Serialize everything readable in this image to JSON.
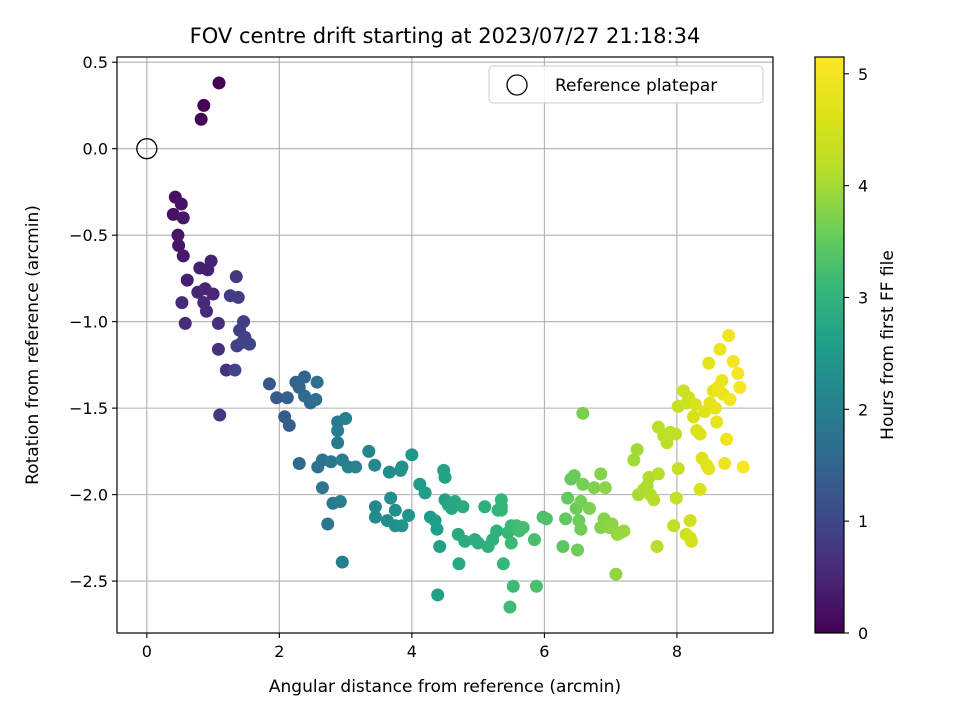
{
  "chart_data": {
    "type": "scatter",
    "title": "FOV centre drift starting at 2023/07/27 21:18:34",
    "xlabel": "Angular distance from reference (arcmin)",
    "ylabel": "Rotation from reference (arcmin)",
    "xlim": [
      -0.45,
      9.45
    ],
    "ylim": [
      -2.8,
      0.53
    ],
    "xticks": [
      0,
      2,
      4,
      6,
      8
    ],
    "xtick_labels": [
      "0",
      "2",
      "4",
      "6",
      "8"
    ],
    "yticks": [
      0.5,
      0.0,
      -0.5,
      -1.0,
      -1.5,
      -2.0,
      -2.5
    ],
    "ytick_labels": [
      "0.5",
      "0.0",
      "−0.5",
      "−1.0",
      "−1.5",
      "−2.0",
      "−2.5"
    ],
    "grid": true,
    "colormap": "viridis",
    "colorbar": {
      "label": "Hours from first FF file",
      "range": [
        0,
        5.15
      ],
      "ticks": [
        0,
        1,
        2,
        3,
        4,
        5
      ],
      "tick_labels": [
        "0",
        "1",
        "2",
        "3",
        "4",
        "5"
      ]
    },
    "legend": {
      "position": "upper-right",
      "entries": [
        "Reference platepar"
      ]
    },
    "reference": {
      "x": 0.0,
      "y": 0.0
    },
    "series": [
      {
        "columns": [
          "x",
          "y",
          "hours"
        ],
        "points": [
          [
            1.09,
            0.38,
            0.02
          ],
          [
            0.86,
            0.25,
            0.03
          ],
          [
            0.82,
            0.17,
            0.04
          ],
          [
            0.43,
            -0.28,
            0.2
          ],
          [
            0.4,
            -0.38,
            0.22
          ],
          [
            0.52,
            -0.32,
            0.24
          ],
          [
            0.47,
            -0.5,
            0.26
          ],
          [
            0.48,
            -0.56,
            0.28
          ],
          [
            0.55,
            -0.4,
            0.3
          ],
          [
            0.55,
            -0.62,
            0.32
          ],
          [
            0.61,
            -0.76,
            0.38
          ],
          [
            0.8,
            -0.69,
            0.4
          ],
          [
            0.92,
            -0.7,
            0.42
          ],
          [
            0.97,
            -0.65,
            0.44
          ],
          [
            0.77,
            -0.83,
            0.46
          ],
          [
            0.88,
            -0.81,
            0.48
          ],
          [
            1.0,
            -0.84,
            0.5
          ],
          [
            0.86,
            -0.89,
            0.52
          ],
          [
            0.9,
            -0.94,
            0.54
          ],
          [
            0.53,
            -0.89,
            0.56
          ],
          [
            0.58,
            -1.01,
            0.58
          ],
          [
            1.08,
            -1.01,
            0.62
          ],
          [
            1.08,
            -1.16,
            0.66
          ],
          [
            1.2,
            -1.28,
            0.7
          ],
          [
            1.1,
            -1.54,
            0.74
          ],
          [
            1.35,
            -0.74,
            0.8
          ],
          [
            1.26,
            -0.85,
            0.82
          ],
          [
            1.38,
            -0.86,
            0.84
          ],
          [
            1.46,
            -1.0,
            0.86
          ],
          [
            1.4,
            -1.05,
            0.88
          ],
          [
            1.48,
            -1.09,
            0.9
          ],
          [
            1.36,
            -1.14,
            0.92
          ],
          [
            1.44,
            -1.12,
            0.94
          ],
          [
            1.55,
            -1.13,
            0.96
          ],
          [
            1.33,
            -1.28,
            0.98
          ],
          [
            1.85,
            -1.36,
            1.25
          ],
          [
            1.96,
            -1.44,
            1.3
          ],
          [
            2.08,
            -1.55,
            1.35
          ],
          [
            2.15,
            -1.6,
            1.38
          ],
          [
            2.12,
            -1.44,
            1.4
          ],
          [
            2.25,
            -1.35,
            1.45
          ],
          [
            2.3,
            -1.38,
            1.48
          ],
          [
            2.38,
            -1.32,
            1.5
          ],
          [
            2.3,
            -1.82,
            1.55
          ],
          [
            2.38,
            -1.43,
            1.58
          ],
          [
            2.47,
            -1.47,
            1.62
          ],
          [
            2.55,
            -1.45,
            1.66
          ],
          [
            2.57,
            -1.35,
            1.7
          ],
          [
            2.58,
            -1.84,
            1.75
          ],
          [
            2.65,
            -1.8,
            1.78
          ],
          [
            2.65,
            -1.96,
            1.8
          ],
          [
            2.73,
            -2.17,
            1.82
          ],
          [
            2.78,
            -1.81,
            1.85
          ],
          [
            2.81,
            -2.05,
            1.88
          ],
          [
            2.88,
            -1.58,
            1.9
          ],
          [
            2.88,
            -1.63,
            1.92
          ],
          [
            2.88,
            -1.7,
            1.94
          ],
          [
            2.95,
            -1.8,
            1.96
          ],
          [
            2.92,
            -2.04,
            1.98
          ],
          [
            2.95,
            -2.39,
            2.0
          ],
          [
            3.0,
            -1.56,
            2.02
          ],
          [
            3.04,
            -1.84,
            2.05
          ],
          [
            3.15,
            -1.84,
            2.08
          ],
          [
            3.35,
            -1.75,
            2.12
          ],
          [
            3.44,
            -1.83,
            2.15
          ],
          [
            3.45,
            -2.07,
            2.18
          ],
          [
            3.45,
            -2.13,
            2.2
          ],
          [
            3.63,
            -2.15,
            2.22
          ],
          [
            3.66,
            -1.87,
            2.25
          ],
          [
            3.68,
            -2.02,
            2.28
          ],
          [
            3.75,
            -2.09,
            2.3
          ],
          [
            3.75,
            -2.18,
            2.32
          ],
          [
            3.83,
            -1.86,
            2.35
          ],
          [
            3.85,
            -1.84,
            2.38
          ],
          [
            3.85,
            -2.18,
            2.4
          ],
          [
            3.95,
            -2.12,
            2.42
          ],
          [
            4.0,
            -1.77,
            2.45
          ],
          [
            4.12,
            -1.94,
            2.5
          ],
          [
            4.2,
            -1.99,
            2.53
          ],
          [
            4.28,
            -2.13,
            2.56
          ],
          [
            4.35,
            -2.15,
            2.58
          ],
          [
            4.38,
            -2.2,
            2.6
          ],
          [
            4.39,
            -2.58,
            2.62
          ],
          [
            4.42,
            -2.3,
            2.64
          ],
          [
            4.5,
            -2.03,
            2.66
          ],
          [
            4.5,
            -1.9,
            2.68
          ],
          [
            4.48,
            -1.86,
            2.7
          ],
          [
            4.55,
            -2.06,
            2.72
          ],
          [
            4.6,
            -2.08,
            2.74
          ],
          [
            4.65,
            -2.04,
            2.76
          ],
          [
            4.71,
            -2.4,
            2.78
          ],
          [
            4.7,
            -2.23,
            2.8
          ],
          [
            4.77,
            -2.07,
            2.82
          ],
          [
            4.8,
            -2.27,
            2.84
          ],
          [
            4.95,
            -2.26,
            2.88
          ],
          [
            5.0,
            -2.28,
            2.9
          ],
          [
            5.1,
            -2.07,
            2.92
          ],
          [
            5.15,
            -2.3,
            2.94
          ],
          [
            5.22,
            -2.26,
            2.96
          ],
          [
            5.28,
            -2.21,
            2.98
          ],
          [
            5.3,
            -2.09,
            3.0
          ],
          [
            5.35,
            -2.07,
            3.02
          ],
          [
            5.35,
            -2.09,
            3.04
          ],
          [
            5.35,
            -2.03,
            3.06
          ],
          [
            5.38,
            -2.4,
            3.08
          ],
          [
            5.45,
            -2.22,
            3.1
          ],
          [
            5.5,
            -2.18,
            3.12
          ],
          [
            5.5,
            -2.28,
            3.14
          ],
          [
            5.53,
            -2.53,
            3.16
          ],
          [
            5.48,
            -2.65,
            3.18
          ],
          [
            5.58,
            -2.18,
            3.2
          ],
          [
            5.62,
            -2.21,
            3.22
          ],
          [
            5.68,
            -2.19,
            3.24
          ],
          [
            5.85,
            -2.26,
            3.26
          ],
          [
            5.88,
            -2.53,
            3.28
          ],
          [
            5.98,
            -2.13,
            3.3
          ],
          [
            6.03,
            -2.14,
            3.32
          ],
          [
            6.28,
            -2.3,
            3.45
          ],
          [
            6.32,
            -2.14,
            3.48
          ],
          [
            6.35,
            -2.02,
            3.5
          ],
          [
            6.4,
            -1.91,
            3.52
          ],
          [
            6.45,
            -1.89,
            3.54
          ],
          [
            6.48,
            -2.08,
            3.56
          ],
          [
            6.52,
            -2.15,
            3.58
          ],
          [
            6.5,
            -2.32,
            3.6
          ],
          [
            6.55,
            -2.2,
            3.62
          ],
          [
            6.55,
            -2.04,
            3.64
          ],
          [
            6.58,
            -1.94,
            3.66
          ],
          [
            6.58,
            -1.53,
            3.68
          ],
          [
            6.68,
            -2.08,
            3.7
          ],
          [
            6.75,
            -1.96,
            3.72
          ],
          [
            6.85,
            -2.19,
            3.74
          ],
          [
            6.85,
            -1.88,
            3.76
          ],
          [
            6.9,
            -2.14,
            3.78
          ],
          [
            6.92,
            -1.96,
            3.8
          ],
          [
            6.98,
            -2.19,
            3.82
          ],
          [
            7.02,
            -2.17,
            3.84
          ],
          [
            7.08,
            -2.46,
            3.86
          ],
          [
            7.1,
            -2.23,
            3.88
          ],
          [
            7.15,
            -2.22,
            3.9
          ],
          [
            7.2,
            -2.21,
            3.92
          ],
          [
            7.35,
            -1.8,
            3.98
          ],
          [
            7.4,
            -1.74,
            4.0
          ],
          [
            7.42,
            -2.0,
            4.02
          ],
          [
            7.5,
            -1.97,
            4.04
          ],
          [
            7.55,
            -1.95,
            4.06
          ],
          [
            7.58,
            -1.9,
            4.08
          ],
          [
            7.6,
            -2.0,
            4.1
          ],
          [
            7.65,
            -2.03,
            4.12
          ],
          [
            7.7,
            -2.3,
            4.14
          ],
          [
            7.72,
            -1.88,
            4.16
          ],
          [
            7.72,
            -1.61,
            4.18
          ],
          [
            7.8,
            -1.66,
            4.2
          ],
          [
            7.85,
            -1.7,
            4.22
          ],
          [
            7.9,
            -1.64,
            4.24
          ],
          [
            7.95,
            -2.18,
            4.26
          ],
          [
            7.98,
            -1.65,
            4.28
          ],
          [
            7.99,
            -2.02,
            4.3
          ],
          [
            8.02,
            -1.85,
            4.32
          ],
          [
            8.02,
            -1.49,
            4.34
          ],
          [
            8.1,
            -1.4,
            4.4
          ],
          [
            8.14,
            -2.23,
            4.42
          ],
          [
            8.15,
            -1.47,
            4.44
          ],
          [
            8.18,
            -1.44,
            4.46
          ],
          [
            8.2,
            -2.15,
            4.48
          ],
          [
            8.22,
            -2.27,
            4.5
          ],
          [
            8.2,
            -2.25,
            4.52
          ],
          [
            8.25,
            -1.55,
            4.54
          ],
          [
            8.28,
            -1.48,
            4.56
          ],
          [
            8.3,
            -1.63,
            4.58
          ],
          [
            8.35,
            -1.97,
            4.6
          ],
          [
            8.35,
            -1.65,
            4.62
          ],
          [
            8.38,
            -1.79,
            4.64
          ],
          [
            8.42,
            -1.52,
            4.66
          ],
          [
            8.45,
            -1.83,
            4.68
          ],
          [
            8.48,
            -1.85,
            4.7
          ],
          [
            8.48,
            -1.24,
            4.72
          ],
          [
            8.5,
            -1.47,
            4.74
          ],
          [
            8.55,
            -1.4,
            4.76
          ],
          [
            8.58,
            -1.5,
            4.78
          ],
          [
            8.6,
            -1.58,
            4.8
          ],
          [
            8.62,
            -1.38,
            4.82
          ],
          [
            8.65,
            -1.16,
            4.84
          ],
          [
            8.68,
            -1.34,
            4.86
          ],
          [
            8.7,
            -1.42,
            4.88
          ],
          [
            8.72,
            -1.82,
            4.9
          ],
          [
            8.75,
            -1.68,
            4.92
          ],
          [
            8.78,
            -1.08,
            4.94
          ],
          [
            8.8,
            -1.45,
            4.96
          ],
          [
            8.85,
            -1.23,
            4.98
          ],
          [
            8.92,
            -1.3,
            5.02
          ],
          [
            8.95,
            -1.38,
            5.05
          ],
          [
            9.0,
            -1.84,
            5.1
          ]
        ]
      }
    ]
  }
}
